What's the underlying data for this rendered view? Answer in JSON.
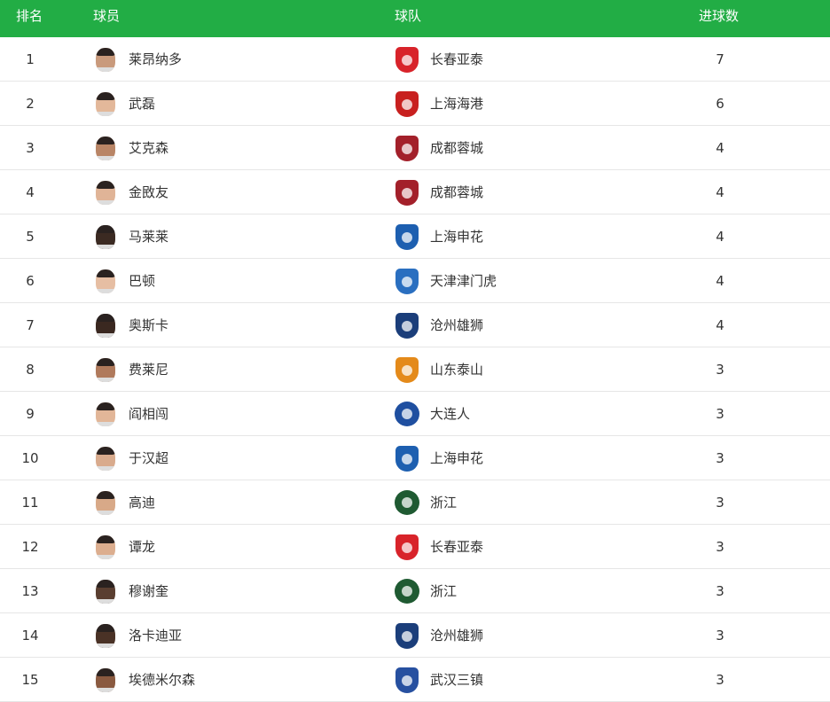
{
  "header": {
    "rank": "排名",
    "player": "球员",
    "team": "球队",
    "goals": "进球数",
    "color": "#22ad45"
  },
  "rows": [
    {
      "rank": "1",
      "player": "莱昂纳多",
      "team": "长春亚泰",
      "goals": "7",
      "skin": "#c99a7c",
      "logo_icon": "changchun-yatai-logo",
      "logo_color": "#d8232a"
    },
    {
      "rank": "2",
      "player": "武磊",
      "team": "上海海港",
      "goals": "6",
      "skin": "#e3b89a",
      "logo_icon": "shanghai-port-logo",
      "logo_color": "#c8201f"
    },
    {
      "rank": "3",
      "player": "艾克森",
      "team": "成都蓉城",
      "goals": "4",
      "skin": "#b98566",
      "logo_icon": "chengdu-rongcheng-logo",
      "logo_color": "#a3202a"
    },
    {
      "rank": "4",
      "player": "金敃友",
      "team": "成都蓉城",
      "goals": "4",
      "skin": "#e0b497",
      "logo_icon": "chengdu-rongcheng-logo",
      "logo_color": "#a3202a"
    },
    {
      "rank": "5",
      "player": "马莱莱",
      "team": "上海申花",
      "goals": "4",
      "skin": "#3b2a22",
      "logo_icon": "shanghai-shenhua-logo",
      "logo_color": "#1d5fb0"
    },
    {
      "rank": "6",
      "player": "巴顿",
      "team": "天津津门虎",
      "goals": "4",
      "skin": "#e6bea3",
      "logo_icon": "tianjin-jinmen-tiger-logo",
      "logo_color": "#2a6fc0"
    },
    {
      "rank": "7",
      "player": "奥斯卡",
      "team": "沧州雄狮",
      "goals": "4",
      "skin": "#3a2820",
      "logo_icon": "cangzhou-lions-logo",
      "logo_color": "#1b3e7a"
    },
    {
      "rank": "8",
      "player": "费莱尼",
      "team": "山东泰山",
      "goals": "3",
      "skin": "#b07a5c",
      "logo_icon": "shandong-taishan-logo",
      "logo_color": "#e48a1a"
    },
    {
      "rank": "9",
      "player": "阎相闯",
      "team": "大连人",
      "goals": "3",
      "skin": "#e2b698",
      "logo_icon": "dalian-pro-logo",
      "logo_color": "#1f4fa0"
    },
    {
      "rank": "10",
      "player": "于汉超",
      "team": "上海申花",
      "goals": "3",
      "skin": "#d9ab8d",
      "logo_icon": "shanghai-shenhua-logo",
      "logo_color": "#1d5fb0"
    },
    {
      "rank": "11",
      "player": "高迪",
      "team": "浙江",
      "goals": "3",
      "skin": "#d8a988",
      "logo_icon": "zhejiang-logo",
      "logo_color": "#1f5a32"
    },
    {
      "rank": "12",
      "player": "谭龙",
      "team": "长春亚泰",
      "goals": "3",
      "skin": "#dcae8f",
      "logo_icon": "changchun-yatai-logo",
      "logo_color": "#d8232a"
    },
    {
      "rank": "13",
      "player": "穆谢奎",
      "team": "浙江",
      "goals": "3",
      "skin": "#5a3e30",
      "logo_icon": "zhejiang-logo",
      "logo_color": "#1f5a32"
    },
    {
      "rank": "14",
      "player": "洛卡迪亚",
      "team": "沧州雄狮",
      "goals": "3",
      "skin": "#4a3226",
      "logo_icon": "cangzhou-lions-logo",
      "logo_color": "#1b3e7a"
    },
    {
      "rank": "15",
      "player": "埃德米尔森",
      "team": "武汉三镇",
      "goals": "3",
      "skin": "#8a5a40",
      "logo_icon": "wuhan-three-towns-logo",
      "logo_color": "#2750a0"
    }
  ]
}
